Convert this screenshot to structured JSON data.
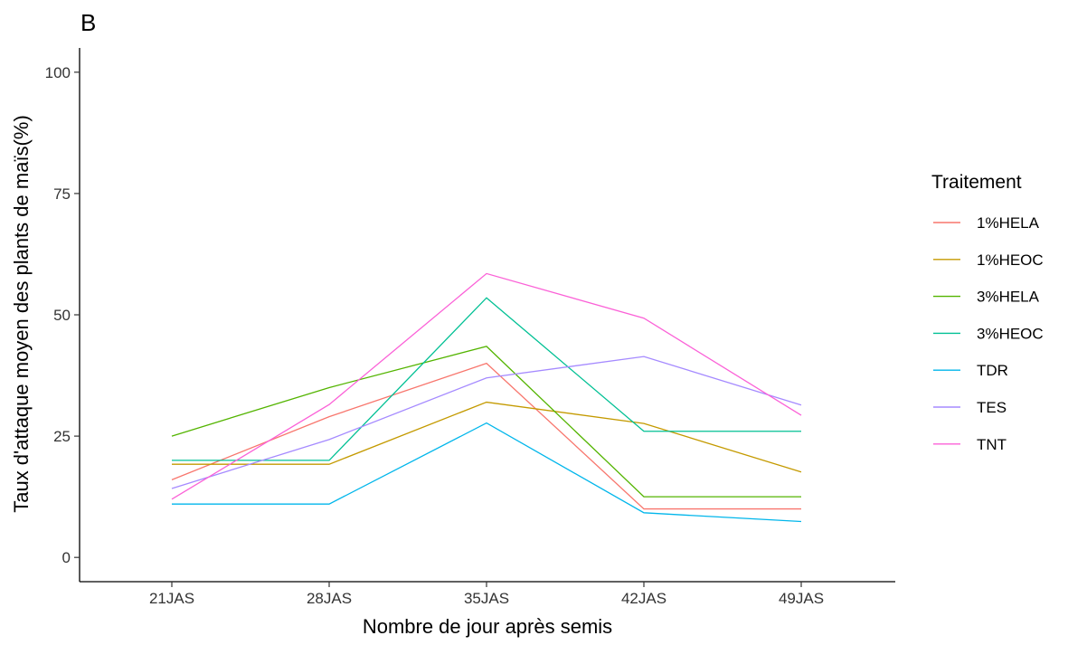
{
  "panel_label": "B",
  "chart_data": {
    "type": "line",
    "title": "",
    "xlabel": "Nombre de jour après semis",
    "ylabel": "Taux d'attaque moyen des plants de maïs(%)",
    "categories": [
      "21JAS",
      "28JAS",
      "35JAS",
      "42JAS",
      "49JAS"
    ],
    "ylim": [
      -5,
      105
    ],
    "yticks": [
      0,
      25,
      50,
      75,
      100
    ],
    "ytick_labels": [
      "0",
      "25",
      "50",
      "75",
      "100"
    ],
    "grid": false,
    "legend": {
      "title": "Traitement",
      "placement": "right"
    },
    "series": [
      {
        "name": "1%HELA",
        "color": "#F8766D",
        "values": [
          16,
          29,
          40,
          10,
          10
        ]
      },
      {
        "name": "1%HEOC",
        "color": "#C49A00",
        "values": [
          19.2,
          19.2,
          32,
          27.6,
          17.6
        ]
      },
      {
        "name": "3%HELA",
        "color": "#53B400",
        "values": [
          25,
          35,
          43.5,
          12.5,
          12.5
        ]
      },
      {
        "name": "3%HEOC",
        "color": "#00C094",
        "values": [
          20,
          20,
          53.5,
          26,
          26
        ]
      },
      {
        "name": "TDR",
        "color": "#00B6EB",
        "values": [
          11,
          11,
          27.7,
          9.2,
          7.4
        ]
      },
      {
        "name": "TES",
        "color": "#A58AFF",
        "values": [
          14.2,
          24.3,
          37,
          41.4,
          31.4
        ]
      },
      {
        "name": "TNT",
        "color": "#FB61D7",
        "values": [
          12,
          31.5,
          58.5,
          49.3,
          29.3
        ]
      }
    ]
  }
}
